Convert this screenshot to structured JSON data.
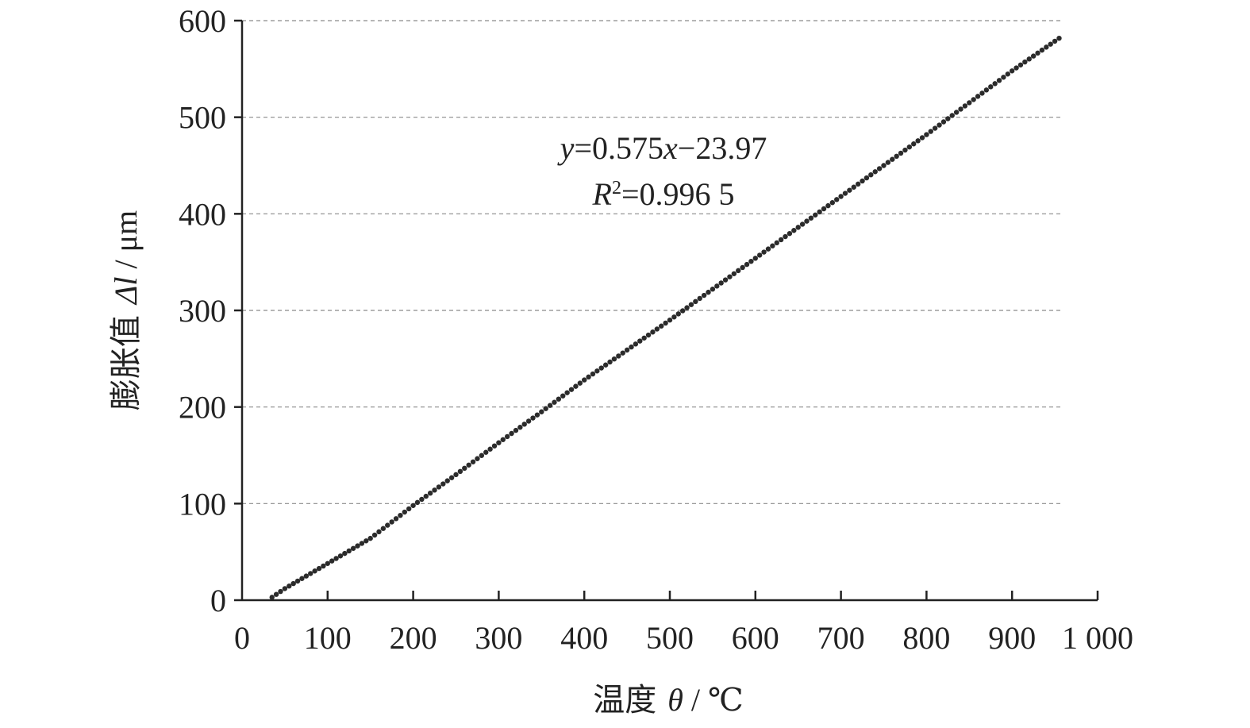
{
  "chart_data": {
    "type": "scatter",
    "xlabel": {
      "cn": "温度",
      "symbol": "θ",
      "unit": " / ℃"
    },
    "ylabel": {
      "cn": "膨胀值",
      "symbol": "Δl",
      "unit": " / μm"
    },
    "xlim": [
      0,
      1000
    ],
    "ylim": [
      0,
      600
    ],
    "x_ticks": [
      0,
      100,
      200,
      300,
      400,
      500,
      600,
      700,
      800,
      900,
      1000
    ],
    "x_tick_labels": [
      "0",
      "100",
      "200",
      "300",
      "400",
      "500",
      "600",
      "700",
      "800",
      "900",
      "1 000"
    ],
    "y_ticks": [
      0,
      100,
      200,
      300,
      400,
      500,
      600
    ],
    "y_tick_labels": [
      "0",
      "100",
      "200",
      "300",
      "400",
      "500",
      "600"
    ],
    "grid": "horizontal-dashed",
    "annotation": {
      "equation": {
        "y": "y",
        "eq": "=0.575",
        "x": "x",
        "rest": "−23.97"
      },
      "r2": {
        "R": "R",
        "sup": "2",
        "rest": "=0.996 5"
      }
    },
    "series": [
      {
        "color": "#2b2b2b",
        "x_start": 35,
        "x_end": 957,
        "x_step": 5,
        "knots_x": [
          30,
          50,
          100,
          150,
          200,
          250,
          300,
          350,
          400,
          450,
          500,
          550,
          600,
          650,
          700,
          750,
          800,
          850,
          900,
          957
        ],
        "knots_y": [
          0,
          12,
          38,
          64,
          98,
          130,
          163,
          195,
          228,
          259,
          290,
          322,
          354,
          386,
          418,
          450,
          482,
          515,
          548,
          583
        ]
      }
    ]
  }
}
